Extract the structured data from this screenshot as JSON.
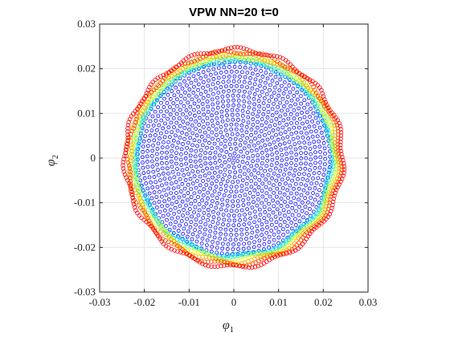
{
  "chart_data": {
    "type": "scatter",
    "title": "VPW NN=20 t=0",
    "xlabel": "φ",
    "xlabel_sub": "1",
    "ylabel": "φ",
    "ylabel_sub": "2",
    "xlim": [
      -0.03,
      0.03
    ],
    "ylim": [
      -0.03,
      0.03
    ],
    "xticks": [
      -0.03,
      -0.02,
      -0.01,
      0,
      0.01,
      0.02,
      0.03
    ],
    "yticks": [
      -0.03,
      -0.02,
      -0.01,
      0,
      0.01,
      0.02,
      0.03
    ],
    "xtick_labels": [
      "-0.03",
      "-0.02",
      "-0.01",
      "0",
      "0.01",
      "0.02",
      "0.03"
    ],
    "ytick_labels": [
      "-0.03",
      "-0.02",
      "-0.01",
      "0",
      "0.01",
      "0.02",
      "0.03"
    ],
    "grid": true,
    "marker": "open-circle",
    "colormap": "jet",
    "structure": {
      "interior_rings": 20,
      "interior_max_radius": 0.0215,
      "interior_color": "#0000ff",
      "boundary_bands": [
        {
          "radius": 0.0218,
          "color": "#00bfff"
        },
        {
          "radius": 0.0221,
          "color": "#00e5e5"
        },
        {
          "radius": 0.0224,
          "color": "#7fff7f"
        },
        {
          "radius": 0.0228,
          "color": "#ffff00"
        },
        {
          "radius": 0.0233,
          "color": "#ffa500"
        },
        {
          "radius": 0.0238,
          "color": "#ff4500"
        },
        {
          "radius": 0.0244,
          "color": "#ff0000"
        }
      ]
    }
  }
}
